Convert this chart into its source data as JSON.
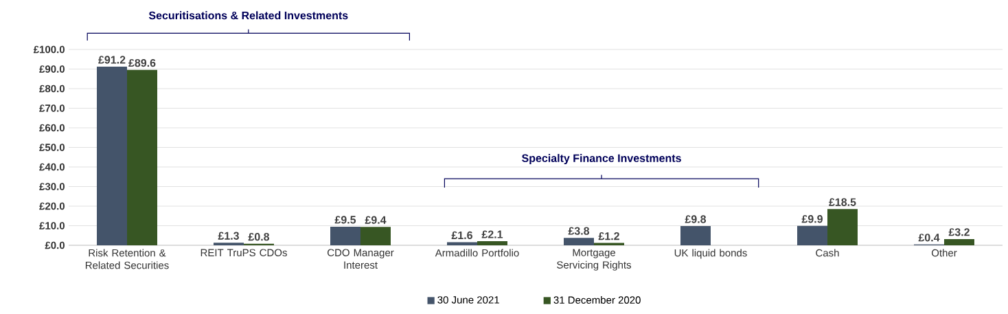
{
  "chart_data": {
    "type": "bar",
    "categories": [
      "Risk Retention & Related Securities",
      "REIT TruPS CDOs",
      "CDO Manager Interest",
      "Armadillo Portfolio",
      "Mortgage Servicing Rights",
      "UK liquid bonds",
      "Cash",
      "Other"
    ],
    "series": [
      {
        "name": "30 June 2021",
        "color": "#44546a",
        "values": [
          91.2,
          1.3,
          9.5,
          1.6,
          3.8,
          9.8,
          9.9,
          0.4
        ],
        "value_labels": [
          "£91.2",
          "£1.3",
          "£9.5",
          "£1.6",
          "£3.8",
          "£9.8",
          "£9.9",
          "£0.4"
        ]
      },
      {
        "name": "31 December 2020",
        "color": "#375623",
        "values": [
          89.6,
          0.8,
          9.4,
          2.1,
          1.2,
          null,
          18.5,
          3.2
        ],
        "value_labels": [
          "£89.6",
          "£0.8",
          "£9.4",
          "£2.1",
          "£1.2",
          null,
          "£18.5",
          "£3.2"
        ]
      }
    ],
    "ylim": [
      0,
      100
    ],
    "yticks": [
      {
        "value": 0,
        "label": "£0.0"
      },
      {
        "value": 10,
        "label": "£10.0"
      },
      {
        "value": 20,
        "label": "£20.0"
      },
      {
        "value": 30,
        "label": "£30.0"
      },
      {
        "value": 40,
        "label": "£40.0"
      },
      {
        "value": 50,
        "label": "£50.0"
      },
      {
        "value": 60,
        "label": "£60.0"
      },
      {
        "value": 70,
        "label": "£70.0"
      },
      {
        "value": 80,
        "label": "£80.0"
      },
      {
        "value": 90,
        "label": "£90.0"
      },
      {
        "value": 100,
        "label": "£100.0"
      }
    ],
    "grid": "y",
    "legend": "bottom",
    "annotations": [
      "Securitisations & Related Investments",
      "Specialty Finance Investments"
    ]
  }
}
